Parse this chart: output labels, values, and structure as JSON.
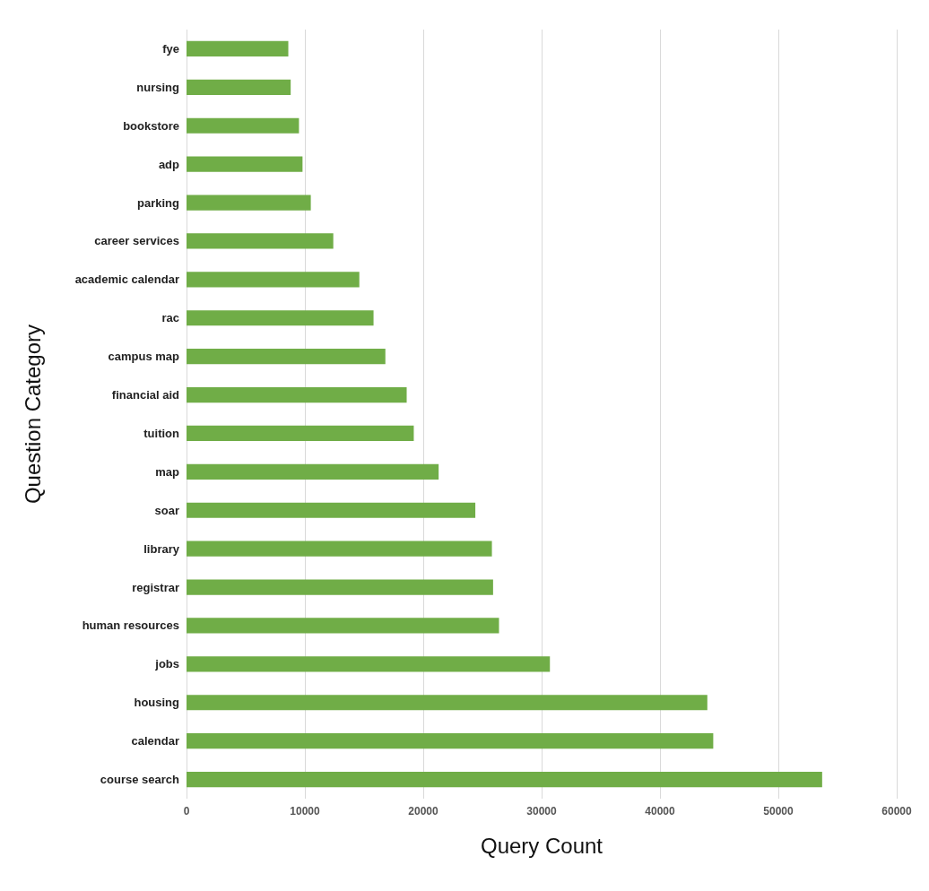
{
  "chart_data": {
    "type": "bar",
    "orientation": "horizontal",
    "xlabel": "Query Count",
    "ylabel": "Question Category",
    "categories": [
      "fye",
      "nursing",
      "bookstore",
      "adp",
      "parking",
      "career services",
      "academic calendar",
      "rac",
      "campus map",
      "financial aid",
      "tuition",
      "map",
      "soar",
      "library",
      "registrar",
      "human resources",
      "jobs",
      "housing",
      "calendar",
      "course search"
    ],
    "values": [
      8600,
      8800,
      9500,
      9800,
      10500,
      12400,
      14600,
      15800,
      16800,
      18600,
      19200,
      21300,
      24400,
      25800,
      25900,
      26400,
      30700,
      44000,
      44500,
      53700
    ],
    "color": "#70ad47",
    "xlim": [
      0,
      60000
    ],
    "xticks": [
      0,
      10000,
      20000,
      30000,
      40000,
      50000,
      60000
    ],
    "grid": "x"
  }
}
